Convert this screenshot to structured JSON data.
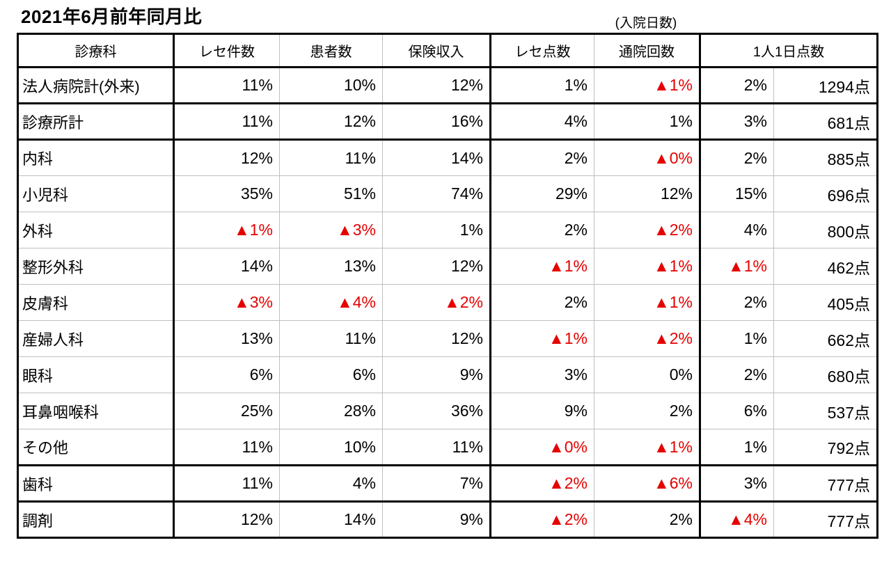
{
  "title": "2021年6月前年同月比",
  "inpatient_days_note": "(入院日数)",
  "colors": {
    "negative": "#e60000",
    "grid_thin": "#bfbfbf",
    "grid_thick": "#000000",
    "background": "#ffffff",
    "text": "#000000"
  },
  "chart_data": {
    "type": "table",
    "title": "2021年6月前年同月比",
    "negative_marker": "▲",
    "headers": [
      "診療科",
      "レセ件数",
      "患者数",
      "保険収入",
      "レセ点数",
      "通院回数",
      "1人1日点数"
    ],
    "note_above_visits_column": "(入院日数)",
    "rows": [
      {
        "dept": "法人病院計(外来)",
        "values": [
          "11%",
          "10%",
          "12%",
          "1%",
          "▲1%",
          "2%",
          "1294点"
        ],
        "group_end": true
      },
      {
        "dept": "診療所計",
        "values": [
          "11%",
          "12%",
          "16%",
          "4%",
          "1%",
          "3%",
          "681点"
        ],
        "group_end": true
      },
      {
        "dept": "内科",
        "values": [
          "12%",
          "11%",
          "14%",
          "2%",
          "▲0%",
          "2%",
          "885点"
        ],
        "group_end": false
      },
      {
        "dept": "小児科",
        "values": [
          "35%",
          "51%",
          "74%",
          "29%",
          "12%",
          "15%",
          "696点"
        ],
        "group_end": false
      },
      {
        "dept": "外科",
        "values": [
          "▲1%",
          "▲3%",
          "1%",
          "2%",
          "▲2%",
          "4%",
          "800点"
        ],
        "group_end": false
      },
      {
        "dept": "整形外科",
        "values": [
          "14%",
          "13%",
          "12%",
          "▲1%",
          "▲1%",
          "▲1%",
          "462点"
        ],
        "group_end": false
      },
      {
        "dept": "皮膚科",
        "values": [
          "▲3%",
          "▲4%",
          "▲2%",
          "2%",
          "▲1%",
          "2%",
          "405点"
        ],
        "group_end": false
      },
      {
        "dept": "産婦人科",
        "values": [
          "13%",
          "11%",
          "12%",
          "▲1%",
          "▲2%",
          "1%",
          "662点"
        ],
        "group_end": false
      },
      {
        "dept": "眼科",
        "values": [
          "6%",
          "6%",
          "9%",
          "3%",
          "0%",
          "2%",
          "680点"
        ],
        "group_end": false
      },
      {
        "dept": "耳鼻咽喉科",
        "values": [
          "25%",
          "28%",
          "36%",
          "9%",
          "2%",
          "6%",
          "537点"
        ],
        "group_end": false
      },
      {
        "dept": "その他",
        "values": [
          "11%",
          "10%",
          "11%",
          "▲0%",
          "▲1%",
          "1%",
          "792点"
        ],
        "group_end": true
      },
      {
        "dept": "歯科",
        "values": [
          "11%",
          "4%",
          "7%",
          "▲2%",
          "▲6%",
          "3%",
          "777点"
        ],
        "group_end": true
      },
      {
        "dept": "調剤",
        "values": [
          "12%",
          "14%",
          "9%",
          "▲2%",
          "2%",
          "▲4%",
          "777点"
        ],
        "group_end": true
      }
    ]
  }
}
